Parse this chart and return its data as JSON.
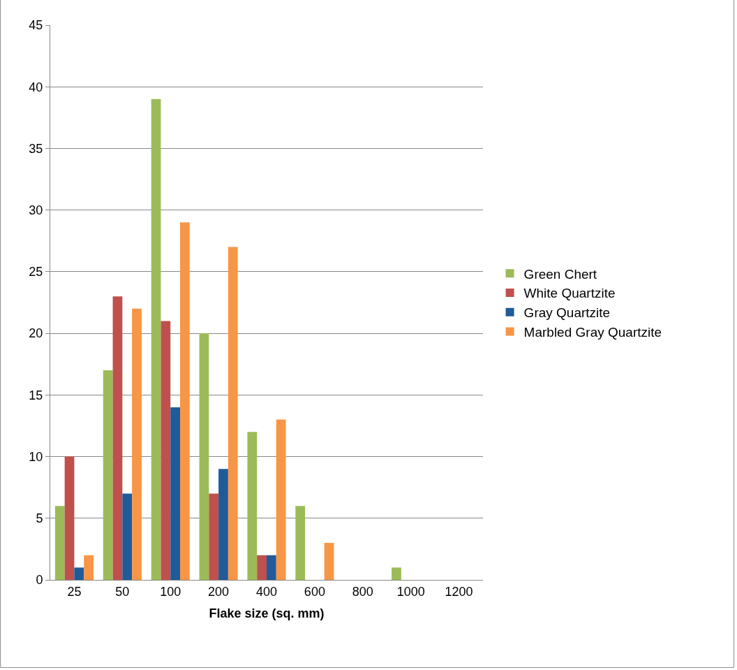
{
  "chart_data": {
    "type": "bar",
    "xlabel": "Flake size (sq. mm)",
    "categories": [
      "25",
      "50",
      "100",
      "200",
      "400",
      "600",
      "800",
      "1000",
      "1200"
    ],
    "series": [
      {
        "name": "Green Chert",
        "color": "#9bbb59",
        "values": [
          6,
          17,
          39,
          20,
          12,
          6,
          0,
          1,
          0
        ]
      },
      {
        "name": "White Quartzite",
        "color": "#c0504d",
        "values": [
          10,
          23,
          21,
          7,
          2,
          0,
          0,
          0,
          0
        ]
      },
      {
        "name": "Gray Quartzite",
        "color": "#1f5b9b",
        "values": [
          1,
          7,
          14,
          9,
          2,
          0,
          0,
          0,
          0
        ]
      },
      {
        "name": "Marbled Gray Quartzite",
        "color": "#f79646",
        "values": [
          2,
          22,
          29,
          27,
          13,
          3,
          0,
          0,
          0
        ]
      }
    ],
    "ylim": [
      0,
      45
    ],
    "yticks": [
      0,
      5,
      10,
      15,
      20,
      25,
      30,
      35,
      40,
      45
    ],
    "grid": "y",
    "legend": "right"
  }
}
